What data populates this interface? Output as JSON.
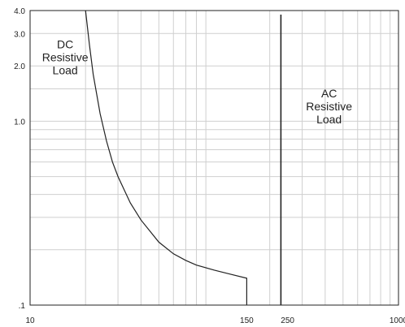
{
  "chart_data": {
    "type": "line",
    "title": "",
    "xlabel": "",
    "ylabel": "",
    "x_scale": "log",
    "y_scale": "log",
    "xlim": [
      10,
      1000
    ],
    "ylim": [
      0.1,
      4.0
    ],
    "grid": true,
    "x_ticks": [
      {
        "value": 10,
        "label": "10"
      },
      {
        "value": 150,
        "label": "150"
      },
      {
        "value": 250,
        "label": "250"
      },
      {
        "value": 1000,
        "label": "1000"
      }
    ],
    "y_ticks": [
      {
        "value": 4.0,
        "label": "4.0"
      },
      {
        "value": 3.0,
        "label": "3.0"
      },
      {
        "value": 2.0,
        "label": "2.0"
      },
      {
        "value": 1.0,
        "label": "1.0"
      },
      {
        "value": 0.1,
        "label": ".1"
      }
    ],
    "series": [
      {
        "x": [
          20,
          21,
          22,
          24,
          26,
          28,
          30,
          35,
          40,
          50,
          60,
          70,
          80,
          100,
          120,
          150,
          150
        ],
        "y": [
          4.0,
          2.6,
          1.8,
          1.1,
          0.78,
          0.6,
          0.5,
          0.36,
          0.29,
          0.22,
          0.19,
          0.175,
          0.165,
          0.155,
          0.148,
          0.14,
          0.1
        ]
      },
      {
        "x": [
          230,
          230
        ],
        "y": [
          3.8,
          0.1
        ]
      }
    ],
    "annotations": [
      {
        "lines": [
          "DC",
          "Resistive",
          "Load"
        ],
        "x": 15.5,
        "y": 2.5
      },
      {
        "lines": [
          "AC",
          "Resistive",
          "Load"
        ],
        "x": 420,
        "y": 1.35
      }
    ]
  }
}
